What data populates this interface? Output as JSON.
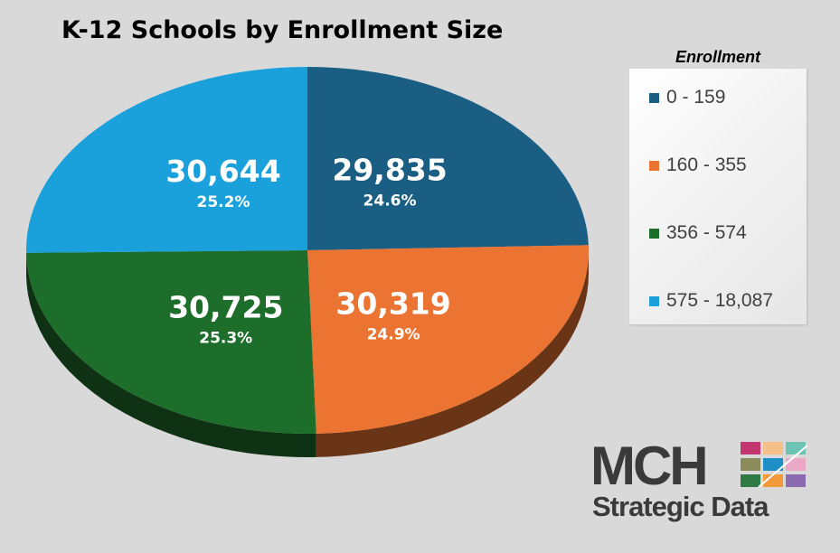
{
  "chart_data": {
    "type": "pie",
    "title": "K-12 Schools by Enrollment Size",
    "legend_title": "Enrollment",
    "legend_position": "right",
    "slices": [
      {
        "label": "0 - 159",
        "value": 29835,
        "value_label": "29,835",
        "percent_label": "24.6%",
        "color": "#1b5e83"
      },
      {
        "label": "160 - 355",
        "value": 30319,
        "value_label": "30,319",
        "percent_label": "24.9%",
        "color": "#ec7432"
      },
      {
        "label": "356 - 574",
        "value": 30725,
        "value_label": "30,725",
        "percent_label": "25.3%",
        "color": "#1e6e2b"
      },
      {
        "label": "575 - 18,087",
        "value": 30644,
        "value_label": "30,644",
        "percent_label": "25.2%",
        "color": "#1aa1dc"
      }
    ]
  },
  "logo": {
    "mark": "MCH",
    "tagline": "Strategic Data",
    "icon": "mosaic-grid-icon"
  }
}
